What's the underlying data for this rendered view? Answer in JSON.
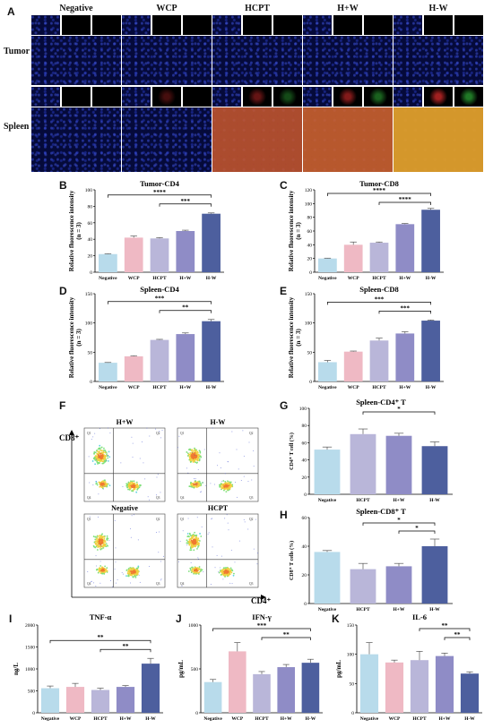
{
  "panel_letters": [
    "A",
    "B",
    "C",
    "D",
    "E",
    "F",
    "G",
    "H",
    "I",
    "J",
    "K"
  ],
  "panelA": {
    "columns": [
      "Negative",
      "WCP",
      "HCPT",
      "H+W",
      "H-W"
    ],
    "rows": [
      "Tumor",
      "Spleen"
    ]
  },
  "panelF": {
    "y_axis": "CD8⁺",
    "x_axis": "CD4⁺",
    "plots": [
      "H+W",
      "H-W",
      "Negative",
      "HCPT"
    ],
    "quadrants": [
      "Q1",
      "Q2",
      "Q3",
      "Q4"
    ]
  },
  "chart_data": [
    {
      "id": "B",
      "type": "bar",
      "title": "Tumor-CD4",
      "ylabel": "Relative fluorescence intensity\n(n = 3)",
      "categories": [
        "Negative",
        "WCP",
        "HCPT",
        "H+W",
        "H-W"
      ],
      "values": [
        22,
        42,
        41,
        50,
        71
      ],
      "errors": [
        0.5,
        2,
        1,
        1,
        1
      ],
      "ylim": [
        0,
        100
      ],
      "yticks": [
        0,
        20,
        40,
        60,
        80,
        100
      ],
      "sig": [
        {
          "from": 0,
          "to": 4,
          "label": "****"
        },
        {
          "from": 2,
          "to": 4,
          "label": "***"
        }
      ]
    },
    {
      "id": "C",
      "type": "bar",
      "title": "Tumor-CD8",
      "ylabel": "Relative fluorescence intensity\n(n = 3)",
      "categories": [
        "Negative",
        "WCP",
        "HCPT",
        "H+W",
        "H-W"
      ],
      "values": [
        20,
        40,
        43,
        70,
        91
      ],
      "errors": [
        0.5,
        4,
        1,
        1,
        2
      ],
      "ylim": [
        0,
        120
      ],
      "yticks": [
        0,
        20,
        40,
        60,
        80,
        100,
        120
      ],
      "sig": [
        {
          "from": 0,
          "to": 4,
          "label": "****"
        },
        {
          "from": 2,
          "to": 4,
          "label": "****"
        }
      ]
    },
    {
      "id": "D",
      "type": "bar",
      "title": "Spleen-CD4",
      "ylabel": "Relative fluorescence intensity\n(n = 3)",
      "categories": [
        "Negative",
        "WCP",
        "HCPT",
        "H+W",
        "H-W"
      ],
      "values": [
        32,
        43,
        71,
        81,
        103
      ],
      "errors": [
        0.5,
        1,
        1,
        2,
        3
      ],
      "ylim": [
        0,
        150
      ],
      "yticks": [
        0,
        50,
        100,
        150
      ],
      "sig": [
        {
          "from": 0,
          "to": 4,
          "label": "***"
        },
        {
          "from": 2,
          "to": 4,
          "label": "**"
        }
      ]
    },
    {
      "id": "E",
      "type": "bar",
      "title": "Spleen-CD8",
      "ylabel": "Relative fluorescence intensity\n(n = 3)",
      "categories": [
        "Negative",
        "WCP",
        "HCPT",
        "H+W",
        "H-W"
      ],
      "values": [
        33,
        51,
        70,
        82,
        104
      ],
      "errors": [
        3,
        1,
        4,
        3,
        1
      ],
      "ylim": [
        0,
        150
      ],
      "yticks": [
        0,
        50,
        100,
        150
      ],
      "sig": [
        {
          "from": 0,
          "to": 4,
          "label": "***"
        },
        {
          "from": 2,
          "to": 4,
          "label": "***"
        }
      ]
    },
    {
      "id": "G",
      "type": "bar",
      "title": "Spleen-CD4⁺ T",
      "ylabel": "CD4⁺ T cell (%)",
      "categories": [
        "Negative",
        "HCPT",
        "H+W",
        "H-W"
      ],
      "values": [
        52,
        70,
        68,
        56
      ],
      "errors": [
        3,
        6,
        3,
        5
      ],
      "ylim": [
        0,
        100
      ],
      "yticks": [
        0,
        20,
        40,
        60,
        80,
        100
      ],
      "sig": [
        {
          "from": 1,
          "to": 3,
          "label": "*"
        }
      ]
    },
    {
      "id": "H",
      "type": "bar",
      "title": "Spleen-CD8⁺ T",
      "ylabel": "CD8⁺ T cells (%)",
      "categories": [
        "Negative",
        "HCPT",
        "H+W",
        "H-W"
      ],
      "values": [
        36,
        24,
        26,
        40
      ],
      "errors": [
        1,
        4,
        2,
        5
      ],
      "ylim": [
        0,
        60
      ],
      "yticks": [
        0,
        20,
        40,
        60
      ],
      "sig": [
        {
          "from": 1,
          "to": 3,
          "label": "*"
        },
        {
          "from": 2,
          "to": 3,
          "label": "*"
        }
      ]
    },
    {
      "id": "I",
      "type": "bar",
      "title": "TNF-α",
      "ylabel": "ng/L",
      "categories": [
        "Negative",
        "WCP",
        "HCPT",
        "H+W",
        "H-W"
      ],
      "values": [
        560,
        590,
        520,
        590,
        1120
      ],
      "errors": [
        50,
        80,
        40,
        30,
        120
      ],
      "ylim": [
        0,
        2000
      ],
      "yticks": [
        0,
        500,
        1000,
        1500,
        2000
      ],
      "sig": [
        {
          "from": 0,
          "to": 4,
          "label": "**"
        },
        {
          "from": 2,
          "to": 4,
          "label": "**"
        }
      ]
    },
    {
      "id": "J",
      "type": "bar",
      "title": "IFN-γ",
      "ylabel": "pg/mL",
      "categories": [
        "Negative",
        "WCP",
        "HCPT",
        "H+W",
        "H-W"
      ],
      "values": [
        350,
        700,
        440,
        520,
        570
      ],
      "errors": [
        30,
        100,
        30,
        30,
        40
      ],
      "ylim": [
        0,
        1000
      ],
      "yticks": [
        0,
        500,
        1000
      ],
      "sig": [
        {
          "from": 0,
          "to": 4,
          "label": "***"
        },
        {
          "from": 2,
          "to": 4,
          "label": "**"
        }
      ]
    },
    {
      "id": "K",
      "type": "bar",
      "title": "IL-6",
      "ylabel": "pg/mL",
      "categories": [
        "Negative",
        "WCP",
        "HCPT",
        "H+W",
        "H-W"
      ],
      "values": [
        100,
        86,
        90,
        97,
        67
      ],
      "errors": [
        20,
        4,
        15,
        5,
        3
      ],
      "ylim": [
        0,
        150
      ],
      "yticks": [
        0,
        50,
        100,
        150
      ],
      "sig": [
        {
          "from": 2,
          "to": 4,
          "label": "**"
        },
        {
          "from": 3,
          "to": 4,
          "label": "**"
        }
      ]
    }
  ],
  "colors": [
    "#b8dbeb",
    "#efb9c4",
    "#b9b6d9",
    "#8f8cc6",
    "#4d5f9e"
  ]
}
